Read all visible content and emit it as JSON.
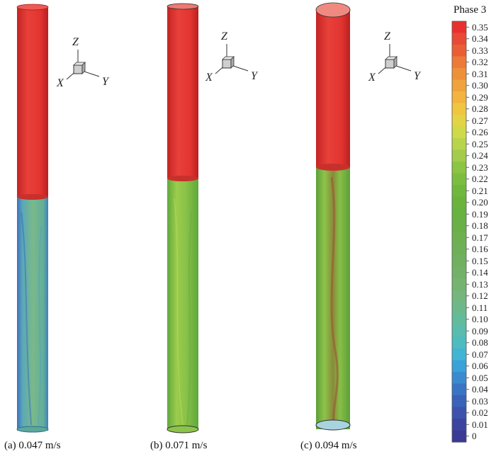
{
  "legend": {
    "title": "Phase 3",
    "ticks": [
      "0.35",
      "0.34",
      "0.33",
      "0.32",
      "0.31",
      "0.30",
      "0.29",
      "0.28",
      "0.27",
      "0.26",
      "0.25",
      "0.24",
      "0.23",
      "0.22",
      "0.21",
      "0.20",
      "0.19",
      "0.18",
      "0.17",
      "0.16",
      "0.15",
      "0.14",
      "0.13",
      "0.12",
      "0.11",
      "0.10",
      "0.09",
      "0.08",
      "0.07",
      "0.06",
      "0.05",
      "0.04",
      "0.03",
      "0.02",
      "0.01",
      "0"
    ],
    "colors": [
      "#e8312e",
      "#e84a35",
      "#ea5e36",
      "#ec7a38",
      "#ee903a",
      "#f0a23c",
      "#f2b43e",
      "#f0c640",
      "#e2d444",
      "#cfda48",
      "#b8d44a",
      "#a2cc4a",
      "#8cc444",
      "#7cbd40",
      "#70b83d",
      "#6ab43c",
      "#68b240",
      "#6ab048",
      "#6eb050",
      "#6eb058",
      "#70b060",
      "#72b268",
      "#74b470",
      "#74b67c",
      "#6cb88a",
      "#62bc9c",
      "#58bcae",
      "#4cbcc0",
      "#42b4d4",
      "#3aa2d8",
      "#3a8ad0",
      "#3a74c4",
      "#3a62b8",
      "#3c52ac",
      "#3c44a0",
      "#3a3a94"
    ]
  },
  "axes_triad": {
    "z": "Z",
    "x": "X",
    "y": "Y"
  },
  "panels": [
    {
      "caption": "(a)  0.047 m/s",
      "boundary": 0.47,
      "body_color": "#6fb389",
      "edge_color": "#3f7fc0"
    },
    {
      "caption": "(b) 0.071 m/s",
      "boundary": 0.42,
      "body_color": "#8cc44a",
      "edge_color": "#5ea83c"
    },
    {
      "caption": "(c) 0.094 m/s",
      "boundary": 0.39,
      "body_color": "#7fbd42",
      "edge_color": "#a06038"
    }
  ],
  "top_phase_color": "#e53a36"
}
